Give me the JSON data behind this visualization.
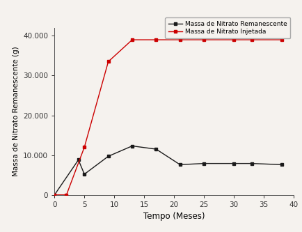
{
  "black_x": [
    0,
    4,
    5,
    9,
    13,
    17,
    21,
    25,
    30,
    33,
    38
  ],
  "black_y": [
    0,
    8800,
    5200,
    9700,
    12300,
    11500,
    7600,
    7900,
    7900,
    7900,
    7600
  ],
  "red_x": [
    0,
    2,
    5,
    9,
    13,
    17,
    21,
    25,
    30,
    33,
    38
  ],
  "red_y": [
    0,
    0,
    12000,
    33500,
    39000,
    39000,
    39000,
    39000,
    39000,
    39000,
    39000
  ],
  "black_color": "#1a1a1a",
  "red_color": "#cc0000",
  "legend_black": "Massa de Nitrato Remanescente",
  "legend_red": "Massa de Nitrato Injetada",
  "xlabel": "Tempo (Meses)",
  "ylabel": "Massa de Nitrato Remanescente (g)",
  "xlim": [
    0,
    40
  ],
  "ylim": [
    0,
    42000
  ],
  "xticks": [
    0,
    5,
    10,
    15,
    20,
    25,
    30,
    35,
    40
  ],
  "yticks": [
    0,
    10000,
    20000,
    30000,
    40000
  ],
  "ytick_labels": [
    "0",
    "10.000",
    "20.000",
    "30.000",
    "40.000"
  ],
  "bg_color": "#f5f2ee",
  "marker": "s",
  "marker_size": 3.5,
  "linewidth": 1.0
}
